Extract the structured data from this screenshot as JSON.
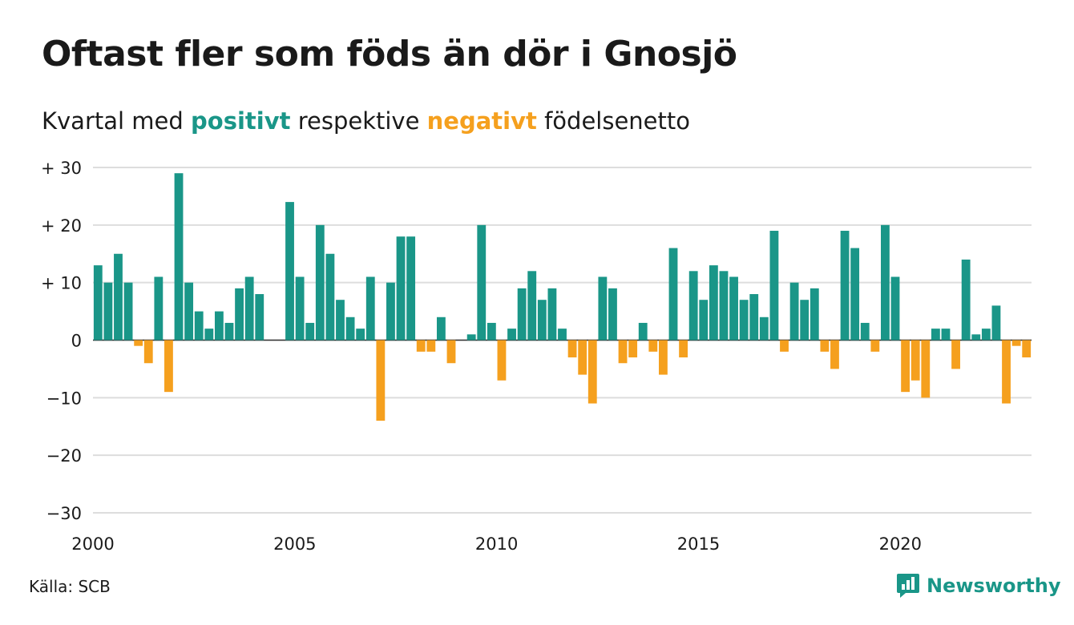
{
  "title": "Oftast fler som föds än dör i Gnosjö",
  "subtitle": {
    "prefix": "Kvartal med",
    "positive_word": "positivt",
    "middle": "respektive",
    "negative_word": "negativt",
    "suffix": "födelsenetto"
  },
  "source": "Källa: SCB",
  "brand": {
    "name": "Newsworthy",
    "icon": "newsworthy-chart-bubble-icon"
  },
  "colors": {
    "positive": "#1a9688",
    "negative": "#f5a01e",
    "grid": "#dddddd",
    "text": "#1a1a1a"
  },
  "chart_data": {
    "type": "bar",
    "x_unit": "quarter",
    "x_start": "2000 Q1",
    "xlim": [
      2000,
      2023.25
    ],
    "ylim": [
      -30,
      30
    ],
    "y_ticks": [
      30,
      20,
      10,
      0,
      -10,
      -20,
      -30
    ],
    "y_tick_labels": [
      "+ 30",
      "+ 20",
      "+ 10",
      "0",
      "−10",
      "−20",
      "−30"
    ],
    "x_ticks": [
      2000,
      2005,
      2010,
      2015,
      2020
    ],
    "x_tick_labels": [
      "2000",
      "2005",
      "2010",
      "2015",
      "2020"
    ],
    "grid": true,
    "values": [
      13,
      10,
      15,
      10,
      -1,
      -4,
      11,
      -9,
      29,
      10,
      5,
      2,
      5,
      3,
      9,
      11,
      8,
      0,
      0,
      24,
      11,
      3,
      20,
      15,
      7,
      4,
      2,
      11,
      -14,
      10,
      18,
      18,
      -2,
      -2,
      4,
      -4,
      0,
      1,
      20,
      3,
      -7,
      2,
      9,
      12,
      7,
      9,
      2,
      -3,
      -6,
      -11,
      11,
      9,
      -4,
      -3,
      3,
      -2,
      -6,
      16,
      -3,
      12,
      7,
      13,
      12,
      11,
      7,
      8,
      4,
      19,
      -2,
      10,
      7,
      9,
      -2,
      -5,
      19,
      16,
      3,
      -2,
      20,
      11,
      -9,
      -7,
      -10,
      2,
      2,
      -5,
      14,
      1,
      2,
      6,
      -11,
      -1,
      -3
    ]
  }
}
